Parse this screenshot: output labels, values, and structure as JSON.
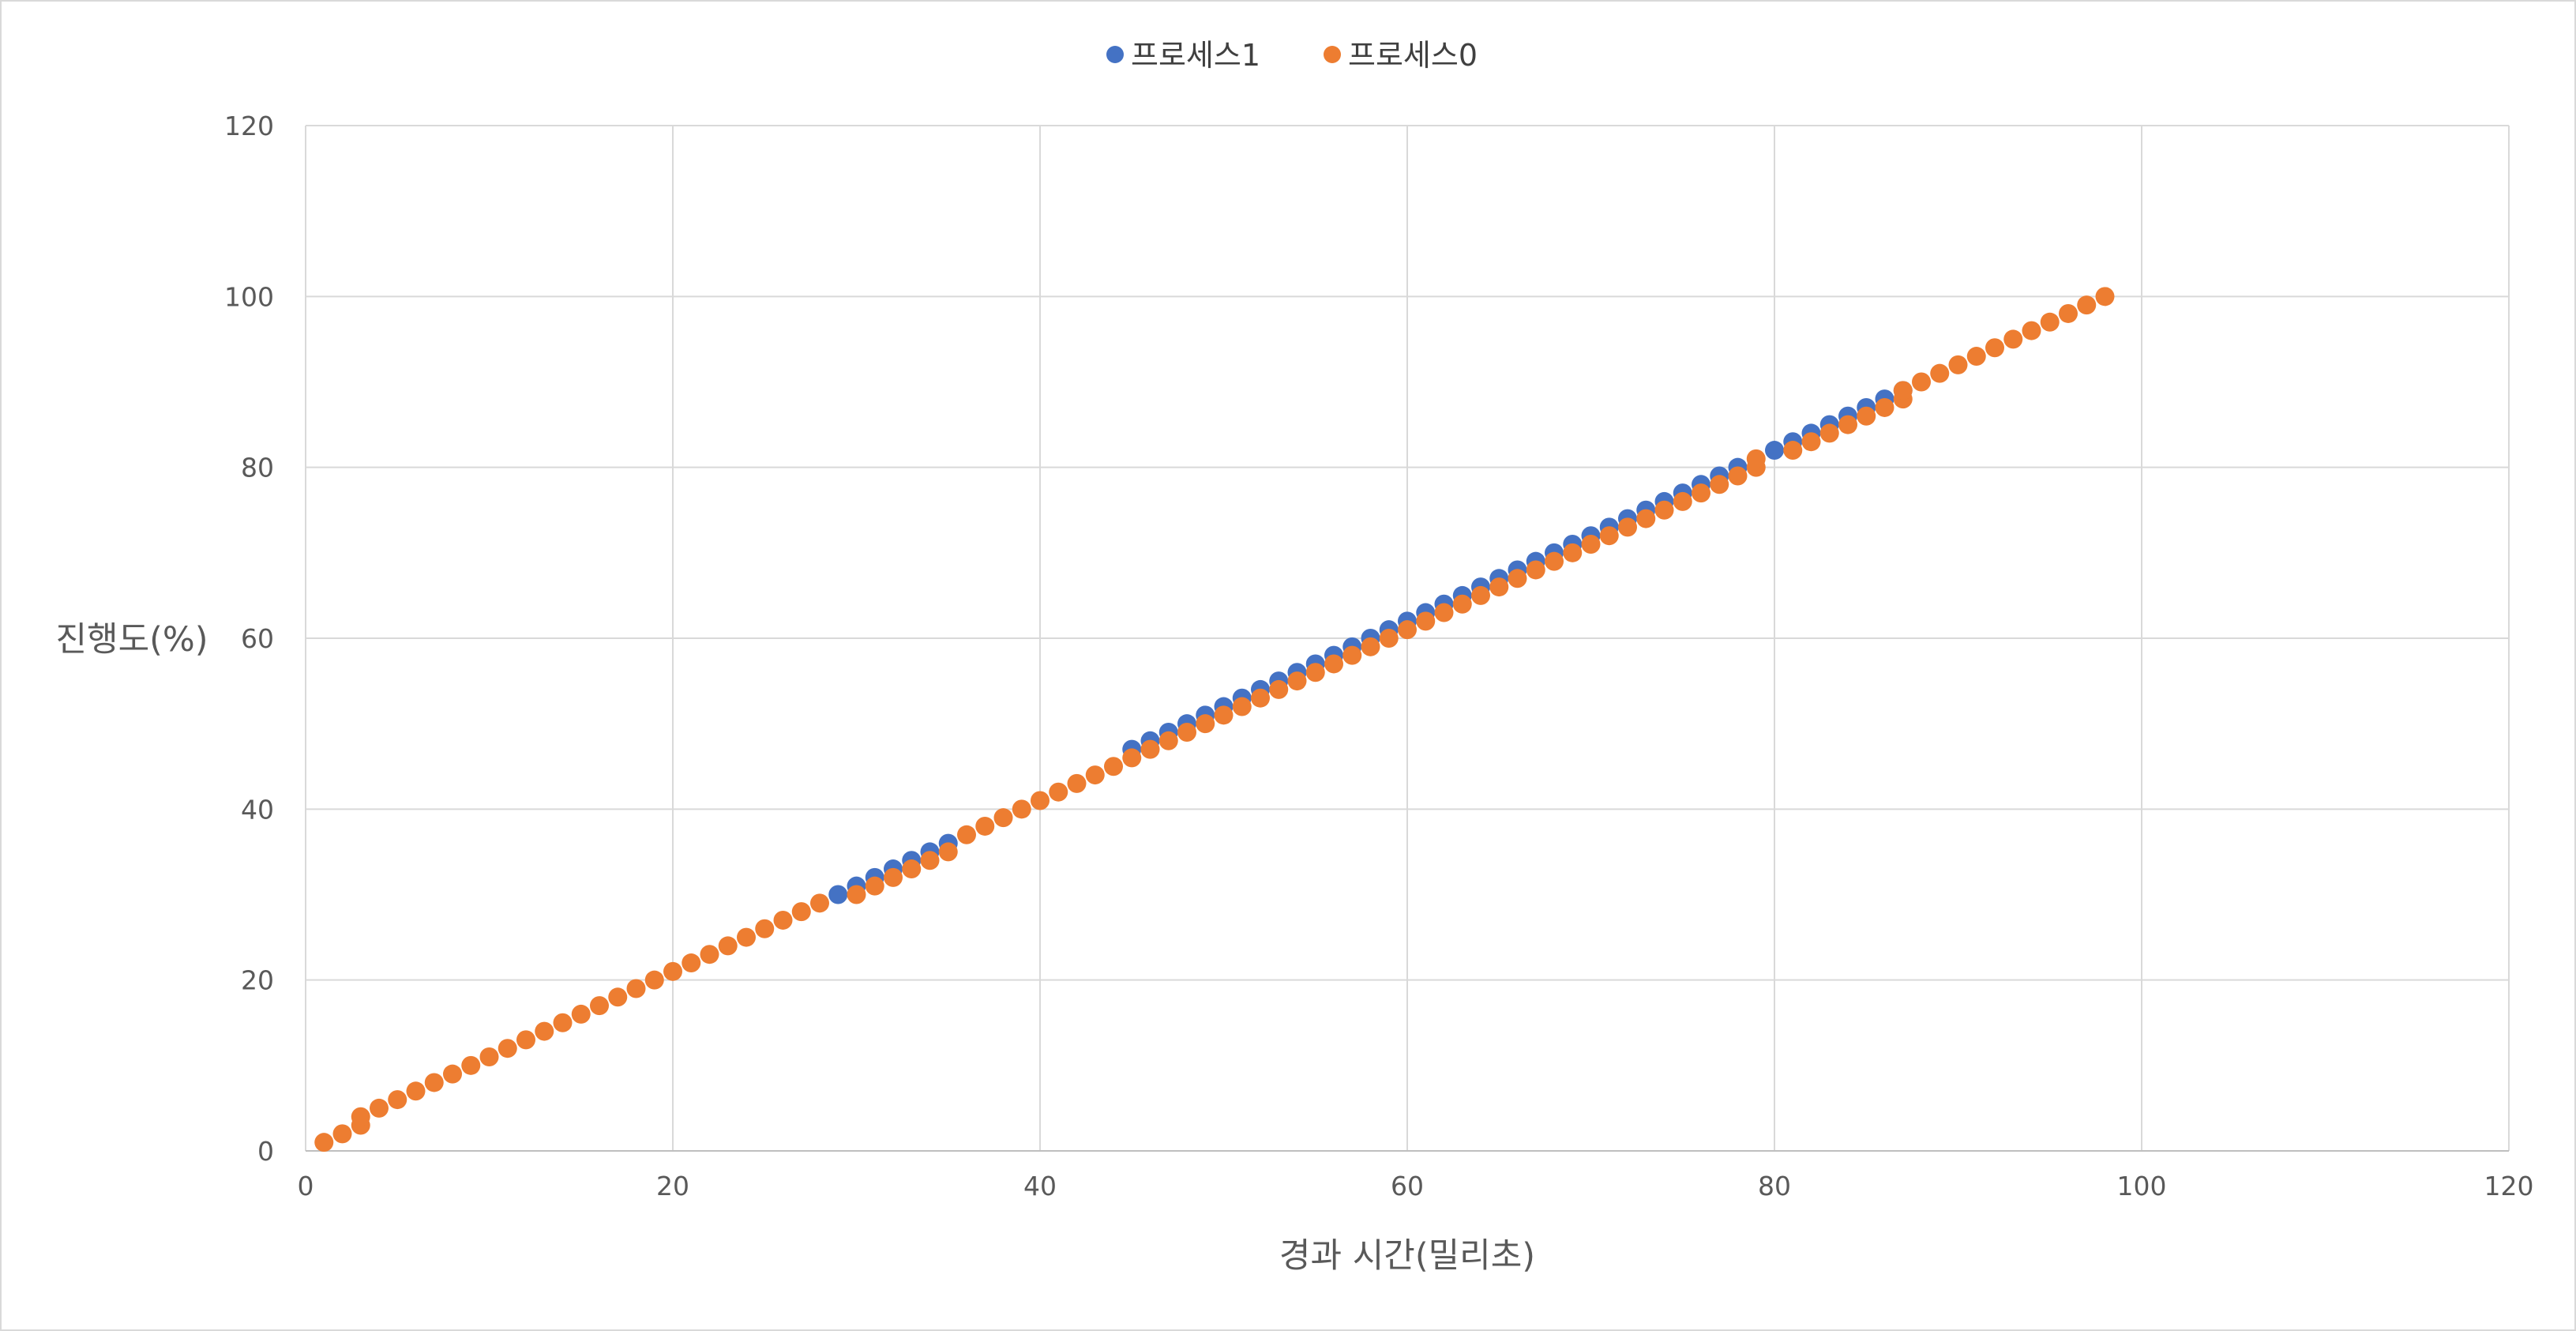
{
  "chart_data": {
    "type": "scatter",
    "xlabel": "경과 시간(밀리초)",
    "ylabel": "진행도(%)",
    "xlim": [
      0,
      120
    ],
    "ylim": [
      0,
      120
    ],
    "xticks": [
      0,
      20,
      40,
      60,
      80,
      100,
      120
    ],
    "yticks": [
      0,
      20,
      40,
      60,
      80,
      100,
      120
    ],
    "grid": true,
    "legend_position": "top",
    "series": [
      {
        "name": "프로세스1",
        "color": "#4472C4",
        "x": [
          29,
          30,
          31,
          32,
          33,
          34,
          35,
          45,
          46,
          47,
          48,
          49,
          50,
          51,
          52,
          53,
          54,
          55,
          56,
          57,
          58,
          59,
          60,
          61,
          62,
          63,
          64,
          65,
          66,
          67,
          68,
          69,
          70,
          71,
          72,
          73,
          74,
          75,
          76,
          77,
          78,
          80,
          81,
          82,
          83,
          84,
          85,
          86,
          87
        ],
        "y": [
          30,
          31,
          32,
          33,
          34,
          35,
          36,
          47,
          48,
          49,
          50,
          51,
          52,
          53,
          54,
          55,
          56,
          57,
          58,
          59,
          60,
          61,
          62,
          63,
          64,
          65,
          66,
          67,
          68,
          69,
          70,
          71,
          72,
          73,
          74,
          75,
          76,
          77,
          78,
          79,
          80,
          82,
          83,
          84,
          85,
          86,
          87,
          88,
          89
        ]
      },
      {
        "name": "프로세스0",
        "color": "#ED7D31",
        "x": [
          1,
          2,
          3,
          3,
          4,
          5,
          6,
          7,
          8,
          9,
          10,
          11,
          12,
          13,
          14,
          15,
          16,
          17,
          18,
          19,
          20,
          21,
          22,
          23,
          24,
          25,
          26,
          27,
          28,
          30,
          31,
          32,
          33,
          34,
          35,
          36,
          37,
          38,
          39,
          40,
          41,
          42,
          43,
          44,
          45,
          46,
          47,
          48,
          49,
          50,
          51,
          52,
          53,
          54,
          55,
          56,
          57,
          58,
          59,
          60,
          61,
          62,
          63,
          64,
          65,
          66,
          67,
          68,
          69,
          70,
          71,
          72,
          73,
          74,
          75,
          76,
          77,
          78,
          79,
          79,
          81,
          82,
          83,
          84,
          85,
          86,
          87,
          87,
          88,
          89,
          90,
          91,
          92,
          93,
          94,
          95,
          96,
          97,
          98
        ],
        "y": [
          1,
          2,
          3,
          4,
          5,
          6,
          7,
          8,
          9,
          10,
          11,
          12,
          13,
          14,
          15,
          16,
          17,
          18,
          19,
          20,
          21,
          22,
          23,
          24,
          25,
          26,
          27,
          28,
          29,
          30,
          31,
          32,
          33,
          34,
          35,
          37,
          38,
          39,
          40,
          41,
          42,
          43,
          44,
          45,
          46,
          47,
          48,
          49,
          50,
          51,
          52,
          53,
          54,
          55,
          56,
          57,
          58,
          59,
          60,
          61,
          62,
          63,
          64,
          65,
          66,
          67,
          68,
          69,
          70,
          71,
          72,
          73,
          74,
          75,
          76,
          77,
          78,
          79,
          80,
          81,
          82,
          83,
          84,
          85,
          86,
          87,
          88,
          89,
          90,
          91,
          92,
          93,
          94,
          95,
          96,
          97,
          98,
          99,
          100
        ]
      }
    ]
  }
}
